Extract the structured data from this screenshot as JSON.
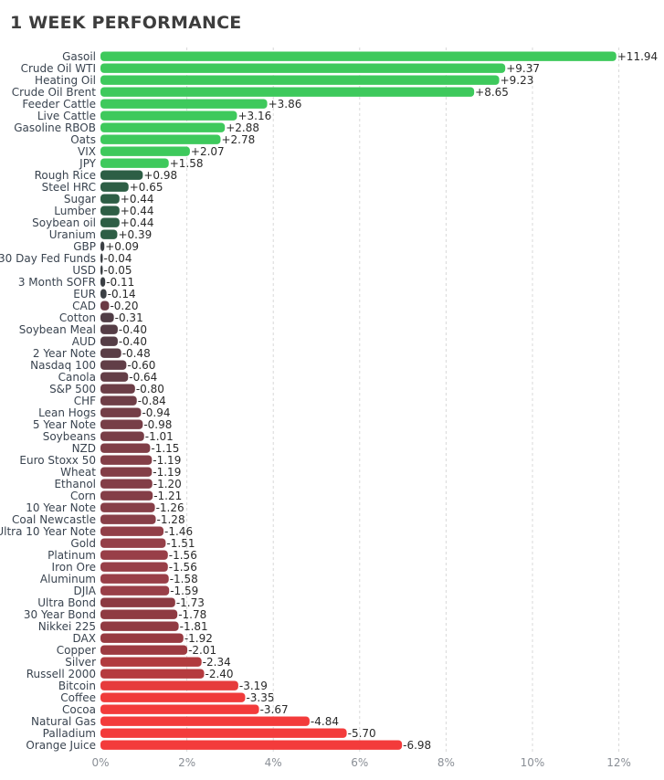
{
  "chart_data": {
    "type": "bar",
    "orientation": "horizontal",
    "title": "1 WEEK PERFORMANCE",
    "xlabel": "",
    "ylabel": "",
    "xlim": [
      0,
      12.5
    ],
    "x_ticks": [
      0,
      2,
      4,
      6,
      8,
      10,
      12
    ],
    "x_tick_labels": [
      "0%",
      "2%",
      "4%",
      "6%",
      "8%",
      "10%",
      "12%"
    ],
    "grid": "vertical dashed",
    "categories": [
      "Gasoil",
      "Crude Oil WTI",
      "Heating Oil",
      "Crude Oil Brent",
      "Feeder Cattle",
      "Live Cattle",
      "Gasoline RBOB",
      "Oats",
      "VIX",
      "JPY",
      "Rough Rice",
      "Steel HRC",
      "Sugar",
      "Lumber",
      "Soybean oil",
      "Uranium",
      "GBP",
      "30 Day Fed Funds",
      "USD",
      "3 Month SOFR",
      "EUR",
      "CAD",
      "Cotton",
      "Soybean Meal",
      "AUD",
      "2 Year Note",
      "Nasdaq 100",
      "Canola",
      "S&P 500",
      "CHF",
      "Lean Hogs",
      "5 Year Note",
      "Soybeans",
      "NZD",
      "Euro Stoxx 50",
      "Wheat",
      "Ethanol",
      "Corn",
      "10 Year Note",
      "Coal Newcastle",
      "Ultra 10 Year Note",
      "Gold",
      "Platinum",
      "Iron Ore",
      "Aluminum",
      "DJIA",
      "Ultra Bond",
      "30 Year Bond",
      "Nikkei 225",
      "DAX",
      "Copper",
      "Silver",
      "Russell 2000",
      "Bitcoin",
      "Coffee",
      "Cocoa",
      "Natural Gas",
      "Palladium",
      "Orange Juice"
    ],
    "values": [
      11.94,
      9.37,
      9.23,
      8.65,
      3.86,
      3.16,
      2.88,
      2.78,
      2.07,
      1.58,
      0.98,
      0.65,
      0.44,
      0.44,
      0.44,
      0.39,
      0.09,
      -0.04,
      -0.05,
      -0.11,
      -0.14,
      -0.2,
      -0.31,
      -0.4,
      -0.4,
      -0.48,
      -0.6,
      -0.64,
      -0.8,
      -0.84,
      -0.94,
      -0.98,
      -1.01,
      -1.15,
      -1.19,
      -1.19,
      -1.2,
      -1.21,
      -1.26,
      -1.28,
      -1.46,
      -1.51,
      -1.56,
      -1.56,
      -1.58,
      -1.59,
      -1.73,
      -1.78,
      -1.81,
      -1.92,
      -2.01,
      -2.34,
      -2.4,
      -3.19,
      -3.35,
      -3.67,
      -4.84,
      -5.7,
      -6.98
    ],
    "value_labels": [
      "+11.94",
      "+9.37",
      "+9.23",
      "+8.65",
      "+3.86",
      "+3.16",
      "+2.88",
      "+2.78",
      "+2.07",
      "+1.58",
      "+0.98",
      "+0.65",
      "+0.44",
      "+0.44",
      "+0.44",
      "+0.39",
      "+0.09",
      "-0.04",
      "-0.05",
      "-0.11",
      "-0.14",
      "-0.20",
      "-0.31",
      "-0.40",
      "-0.40",
      "-0.48",
      "-0.60",
      "-0.64",
      "-0.80",
      "-0.84",
      "-0.94",
      "-0.98",
      "-1.01",
      "-1.15",
      "-1.19",
      "-1.19",
      "-1.20",
      "-1.21",
      "-1.26",
      "-1.28",
      "-1.46",
      "-1.51",
      "-1.56",
      "-1.56",
      "-1.58",
      "-1.59",
      "-1.73",
      "-1.78",
      "-1.81",
      "-1.92",
      "-2.01",
      "-2.34",
      "-2.40",
      "-3.19",
      "-3.35",
      "-3.67",
      "-4.84",
      "-5.70",
      "-6.98"
    ],
    "bars_drawn_by_magnitude": true,
    "colors": {
      "strong_positive": "#3ec95c",
      "mild_positive": "#2d5e45",
      "flat": "#3b3f44",
      "mild_negative": "#6b3a44",
      "strong_negative": "#f33b3b",
      "axis_text": "#8a8f96",
      "label_text": "#3a4450",
      "grid": "#d9d9d9"
    }
  }
}
